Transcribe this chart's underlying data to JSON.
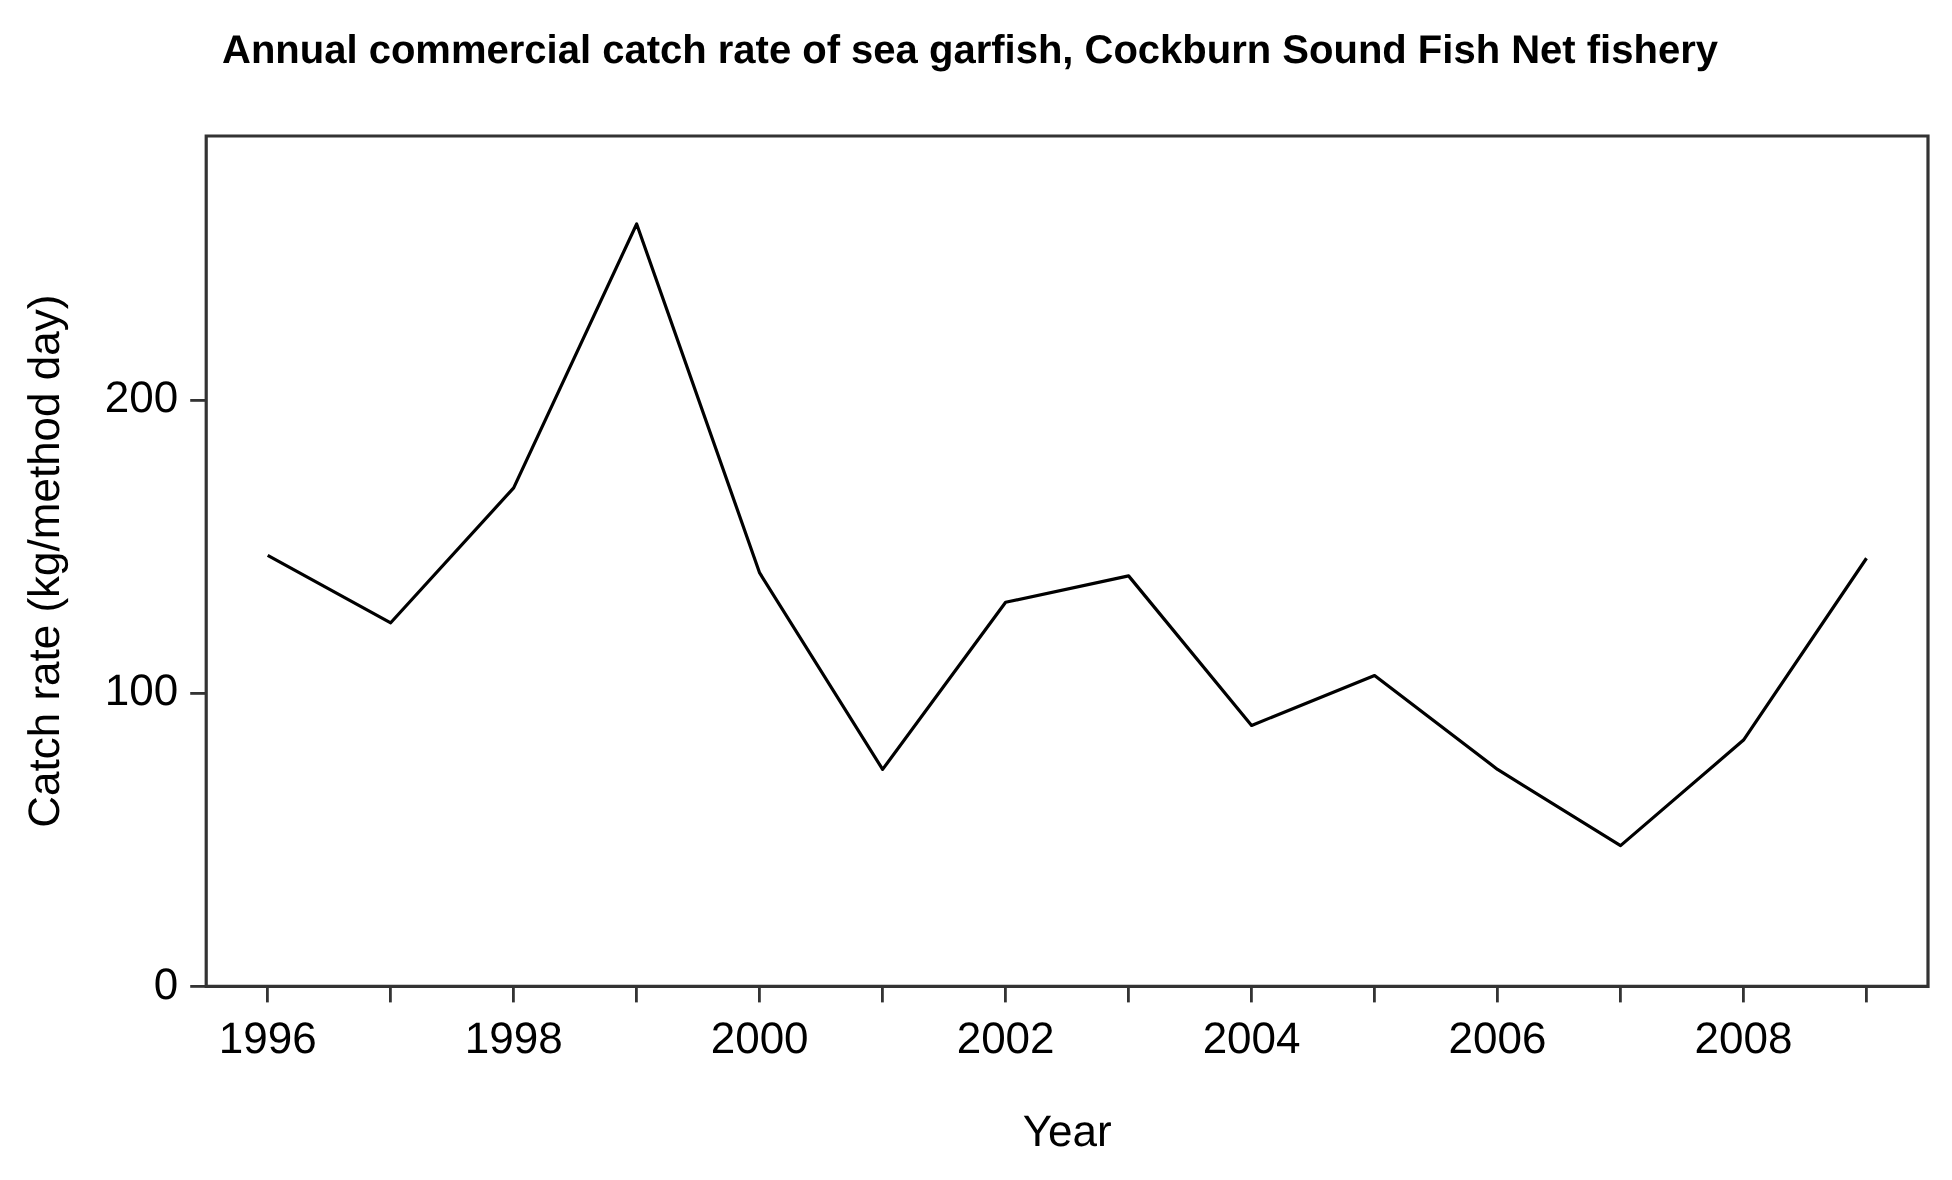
{
  "chart_data": {
    "type": "line",
    "title": "Annual commercial catch rate of sea garfish, Cockburn Sound Fish Net fishery",
    "xlabel": "Year",
    "ylabel": "Catch rate (kg/method day)",
    "x": [
      1996,
      1997,
      1998,
      1999,
      2000,
      2001,
      2002,
      2003,
      2004,
      2005,
      2006,
      2007,
      2008,
      2009
    ],
    "series": [
      {
        "color": "#000000",
        "values": [
          147,
          124,
          170,
          260,
          141,
          74,
          131,
          140,
          89,
          106,
          74,
          48,
          84,
          146
        ]
      }
    ],
    "xlim": [
      1995.5,
      2009.5
    ],
    "xticks": [
      1996,
      {
        "value": 1997,
        "label": null
      },
      1998,
      {
        "value": 1999,
        "label": null
      },
      2000,
      {
        "value": 2001,
        "label": null
      },
      2002,
      {
        "value": 2003,
        "label": null
      },
      2004,
      {
        "value": 2005,
        "label": null
      },
      2006,
      {
        "value": 2007,
        "label": null
      },
      2008,
      {
        "value": 2009,
        "label": null
      }
    ],
    "ylim": [
      0,
      290
    ],
    "yticks": [
      0,
      100,
      200
    ],
    "grid": false,
    "legend": false,
    "marker": "none",
    "line_style": "solid"
  }
}
